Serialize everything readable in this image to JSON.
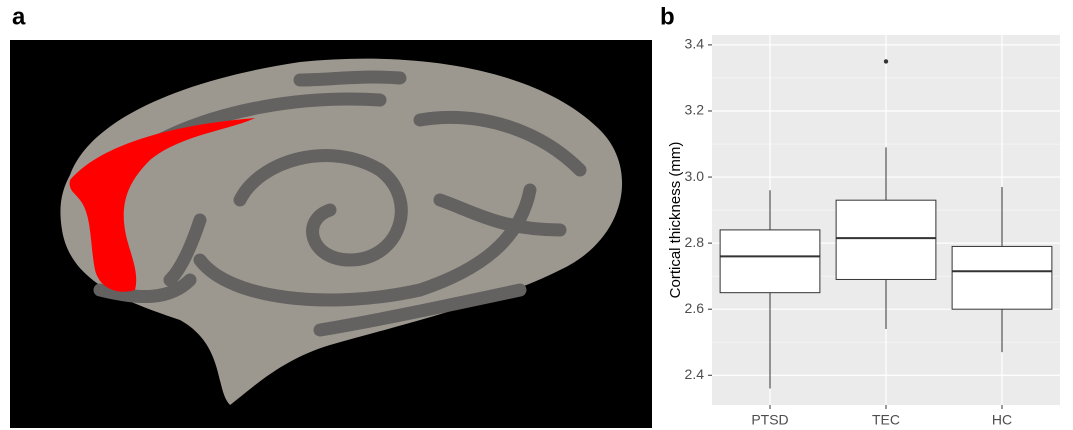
{
  "panel_a": {
    "label": "a"
  },
  "chart_data": {
    "type": "box",
    "panel_label": "b",
    "y_label": "Cortical thickness (mm)",
    "categories": [
      "PTSD",
      "TEC",
      "HC"
    ],
    "boxes": [
      {
        "whisker_low": 2.36,
        "q1": 2.65,
        "median": 2.76,
        "q3": 2.84,
        "whisker_high": 2.96,
        "outliers": []
      },
      {
        "whisker_low": 2.54,
        "q1": 2.69,
        "median": 2.815,
        "q3": 2.93,
        "whisker_high": 3.09,
        "outliers": [
          3.35
        ]
      },
      {
        "whisker_low": 2.47,
        "q1": 2.6,
        "median": 2.715,
        "q3": 2.79,
        "whisker_high": 2.97,
        "outliers": []
      }
    ],
    "ylim": [
      2.31,
      3.43
    ],
    "yticks": [
      2.4,
      2.6,
      2.8,
      {
        "value": 3,
        "label": "3.0"
      },
      3.2,
      3.4
    ],
    "grid": true,
    "box_fill": "#ffffff",
    "line_color": "#333333",
    "panel_color": "#ebebeb"
  }
}
